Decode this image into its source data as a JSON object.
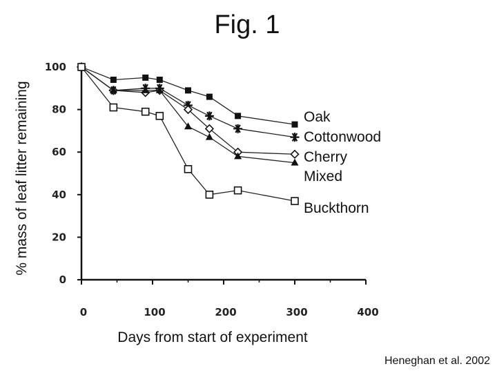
{
  "chart_data": {
    "type": "line",
    "title": "Fig. 1",
    "xlabel": "Days from start of experiment",
    "ylabel": "% mass of leaf litter remaining",
    "xlim": [
      0,
      400
    ],
    "ylim": [
      0,
      100
    ],
    "x_ticks": [
      "0",
      "100",
      "200",
      "300",
      "400"
    ],
    "y_ticks": [
      "0",
      "20",
      "40",
      "60",
      "80",
      "100"
    ],
    "grid": false,
    "legend": "labels at right end of each line",
    "series": [
      {
        "name": "Oak",
        "marker": "filled-square",
        "x": [
          0,
          45,
          90,
          110,
          150,
          180,
          220,
          300
        ],
        "y": [
          100,
          94,
          95,
          94,
          89,
          86,
          77,
          73
        ]
      },
      {
        "name": "Cottonwood",
        "marker": "star",
        "x": [
          0,
          45,
          90,
          110,
          150,
          180,
          220,
          300
        ],
        "y": [
          100,
          89,
          90,
          90,
          82,
          77,
          71,
          67
        ]
      },
      {
        "name": "Cherry",
        "marker": "open-diamond",
        "x": [
          0,
          45,
          90,
          110,
          150,
          180,
          220,
          300
        ],
        "y": [
          100,
          89,
          88,
          89,
          80,
          71,
          60,
          59
        ]
      },
      {
        "name": "Mixed",
        "marker": "filled-triangle",
        "x": [
          0,
          45,
          90,
          110,
          150,
          180,
          220,
          300
        ],
        "y": [
          100,
          89,
          89,
          89,
          72,
          67,
          58,
          55
        ]
      },
      {
        "name": "Buckthorn",
        "marker": "open-square",
        "x": [
          0,
          45,
          90,
          110,
          150,
          180,
          220,
          300
        ],
        "y": [
          100,
          81,
          79,
          77,
          52,
          40,
          42,
          37
        ]
      }
    ]
  },
  "credit": "Heneghan et al. 2002"
}
